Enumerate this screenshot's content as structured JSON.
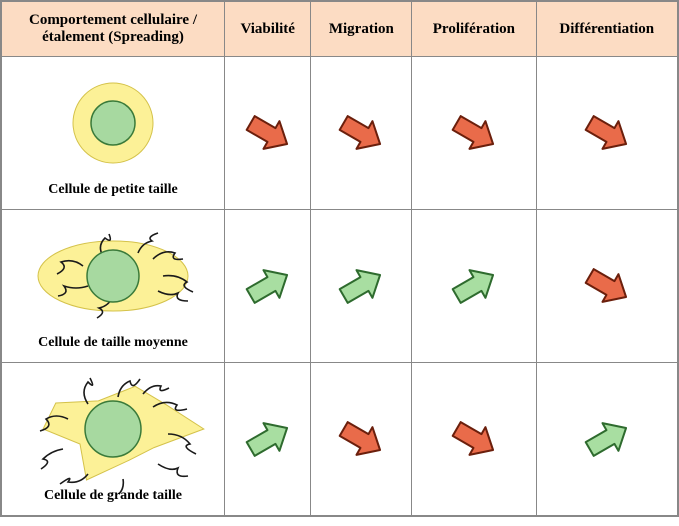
{
  "colors": {
    "header_bg": "#fcdcc3",
    "border": "#888888",
    "arrow_down_fill": "#e96b4a",
    "arrow_down_stroke": "#6b1f0c",
    "arrow_up_fill": "#a8dea1",
    "arrow_up_stroke": "#2e6b2e",
    "cell_body": "#fcf197",
    "cell_body_stroke": "#d4c24a",
    "nucleus_fill": "#a7d9a0",
    "nucleus_stroke": "#3a7a3a",
    "fiber": "#1a1a1a"
  },
  "headers": {
    "col1_line1": "Comportement cellulaire /",
    "col1_line2": "étalement (Spreading)",
    "col2": "Viabilité",
    "col3": "Migration",
    "col4": "Prolifération",
    "col5": "Différentiation"
  },
  "rows": [
    {
      "label": "Cellule de petite taille",
      "cell": {
        "shape": "small",
        "fibers": false,
        "body_rx": 40,
        "body_ry": 40,
        "nucleus_r": 22
      },
      "arrows": [
        "down",
        "down",
        "down",
        "down"
      ]
    },
    {
      "label": "Cellule de taille moyenne",
      "cell": {
        "shape": "medium",
        "fibers": true,
        "body_rx": 75,
        "body_ry": 35,
        "nucleus_r": 26
      },
      "arrows": [
        "up",
        "up",
        "up",
        "down"
      ]
    },
    {
      "label": "Cellule de grande taille",
      "cell": {
        "shape": "large",
        "fibers": true,
        "body_rx": 80,
        "body_ry": 50,
        "nucleus_r": 28
      },
      "arrows": [
        "up",
        "down",
        "down",
        "up"
      ]
    }
  ],
  "arrow": {
    "width": 56,
    "height": 56
  }
}
